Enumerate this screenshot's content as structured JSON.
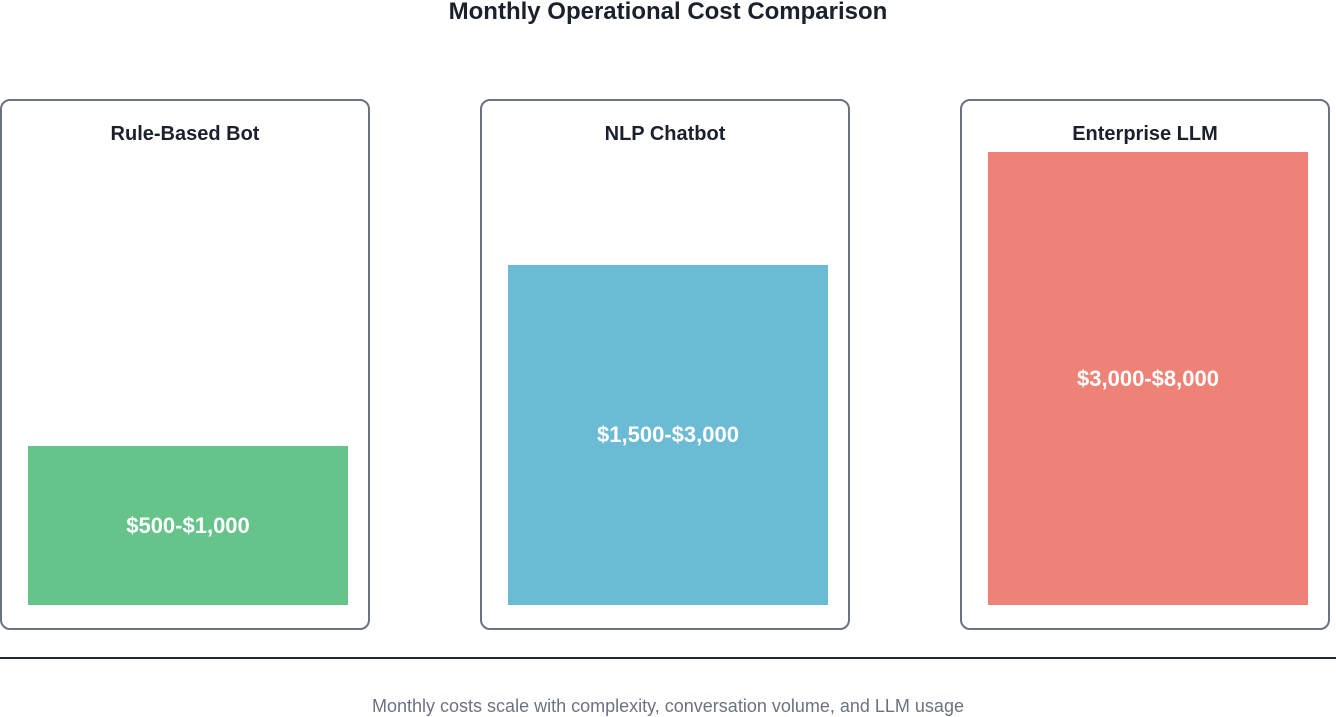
{
  "chart_data": {
    "type": "bar",
    "title": "Monthly Operational Cost Comparison",
    "footer": "Monthly costs scale with complexity, conversation volume, and LLM usage",
    "categories": [
      "Rule-Based Bot",
      "NLP Chatbot",
      "Enterprise LLM"
    ],
    "value_labels": [
      "$500-$1,000",
      "$1,500-$3,000",
      "$3,000-$8,000"
    ],
    "values": [
      3.5,
      7.5,
      10
    ],
    "ylim": [
      0,
      10
    ],
    "colors": [
      "#66c38a",
      "#6bbbd4",
      "#ee8276"
    ],
    "grid": false
  }
}
